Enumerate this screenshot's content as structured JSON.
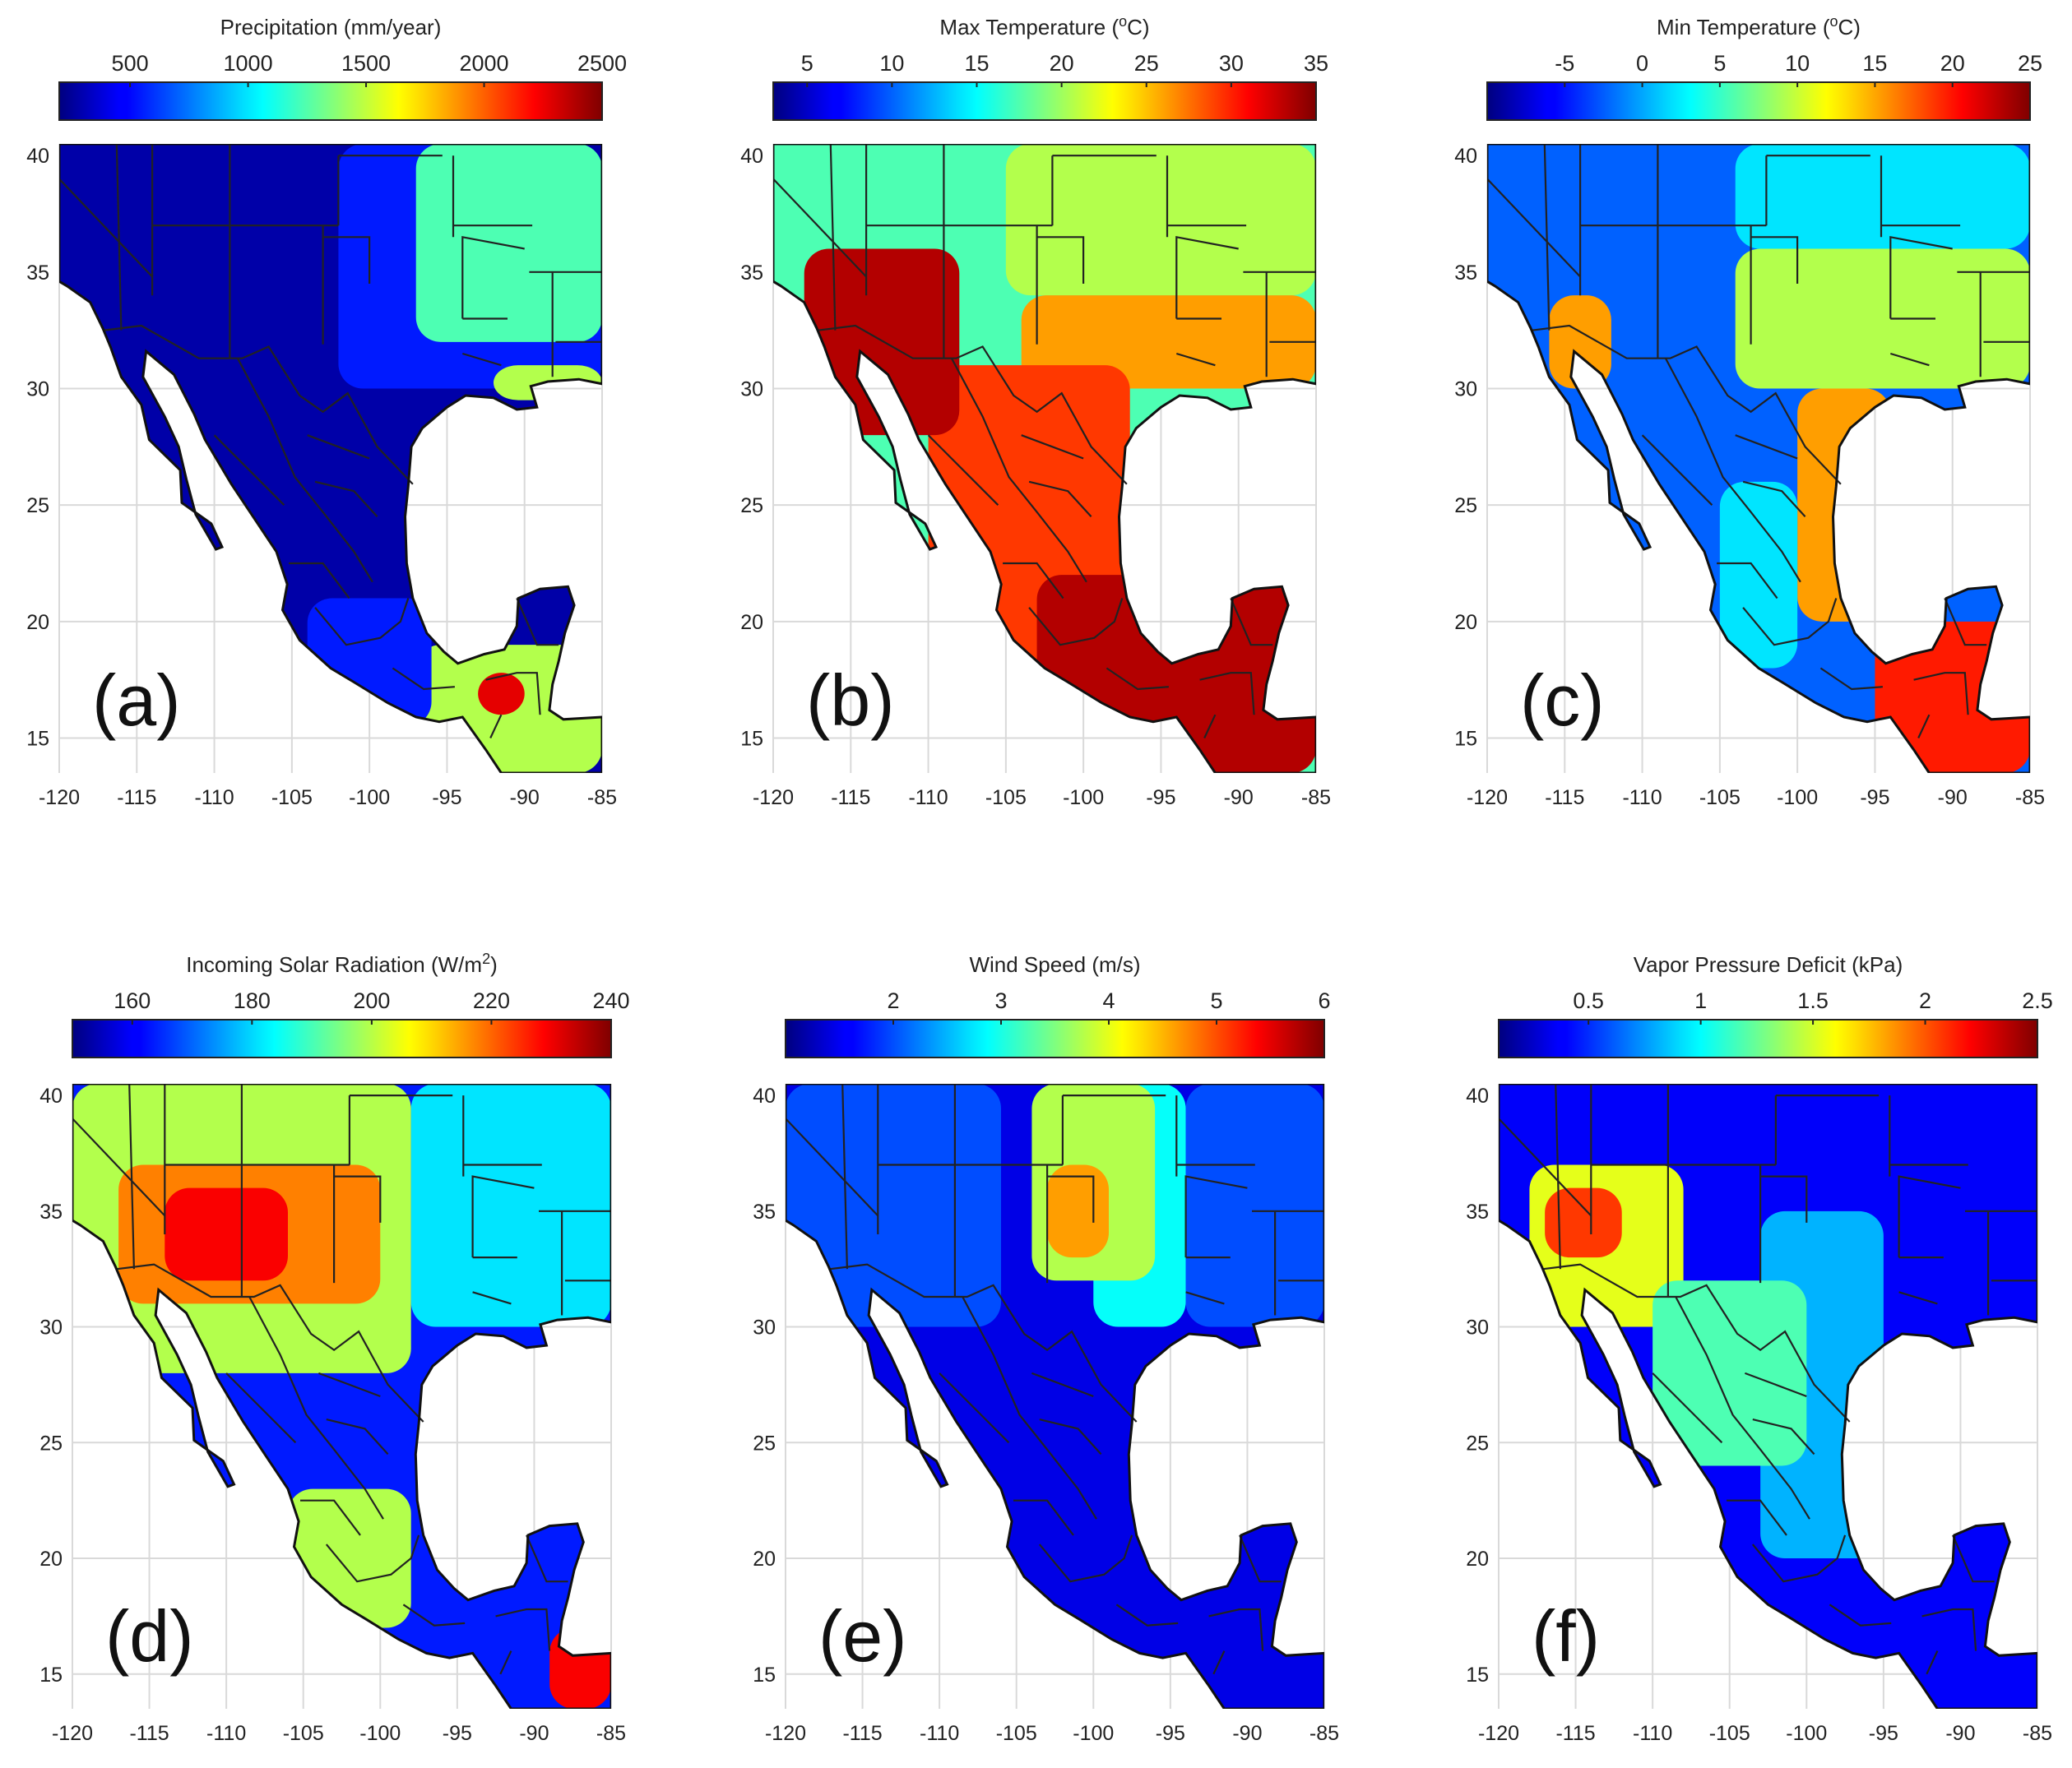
{
  "panels": [
    {
      "id": "a",
      "label": "(a)",
      "title": "Precipitation (mm/year)",
      "colorbar_ticks": [
        "500",
        "1000",
        "1500",
        "2000",
        "2500"
      ],
      "colorbar_min": 200,
      "colorbar_max": 2500,
      "tick_values": [
        500,
        1000,
        1500,
        2000,
        2500
      ],
      "fill_levels": [
        0.04,
        0.15,
        0.45,
        0.55,
        0.9
      ]
    },
    {
      "id": "b",
      "label": "(b)",
      "title": "Max Temperature (°C)",
      "title_base": "Max Temperature (",
      "title_sup": "o",
      "title_end": "C)",
      "colorbar_ticks": [
        "5",
        "10",
        "15",
        "20",
        "25",
        "30",
        "35"
      ],
      "colorbar_min": 3,
      "colorbar_max": 35,
      "tick_values": [
        5,
        10,
        15,
        20,
        25,
        30,
        35
      ],
      "fill_levels": [
        0.45,
        0.55,
        0.72,
        0.82,
        0.95
      ]
    },
    {
      "id": "c",
      "label": "(c)",
      "title": "Min Temperature (°C)",
      "title_base": "Min Temperature (",
      "title_sup": "o",
      "title_end": "C)",
      "colorbar_ticks": [
        "-5",
        "0",
        "5",
        "10",
        "15",
        "20",
        "25"
      ],
      "colorbar_min": -10,
      "colorbar_max": 25,
      "tick_values": [
        -5,
        0,
        5,
        10,
        15,
        20,
        25
      ],
      "fill_levels": [
        0.22,
        0.35,
        0.55,
        0.72,
        0.85
      ]
    },
    {
      "id": "d",
      "label": "(d)",
      "title": "Incoming Solar Radiation (W/m2)",
      "title_base": "Incoming Solar Radiation (W/m",
      "title_sup": "2",
      "title_end": ")",
      "colorbar_ticks": [
        "160",
        "180",
        "200",
        "220",
        "240"
      ],
      "colorbar_min": 150,
      "colorbar_max": 240,
      "tick_values": [
        160,
        180,
        200,
        220,
        240
      ],
      "fill_levels": [
        0.15,
        0.35,
        0.55,
        0.75,
        0.88
      ]
    },
    {
      "id": "e",
      "label": "(e)",
      "title": "Wind Speed (m/s)",
      "colorbar_ticks": [
        "2",
        "3",
        "4",
        "5",
        "6"
      ],
      "colorbar_min": 1,
      "colorbar_max": 6,
      "tick_values": [
        2,
        3,
        4,
        5,
        6
      ],
      "fill_levels": [
        0.1,
        0.2,
        0.38,
        0.55,
        0.72
      ]
    },
    {
      "id": "f",
      "label": "(f)",
      "title": "Vapor Pressure Deficit (kPa)",
      "colorbar_ticks": [
        "0.5",
        "1",
        "1.5",
        "2",
        "2.5"
      ],
      "colorbar_min": 0.1,
      "colorbar_max": 2.5,
      "tick_values": [
        0.5,
        1,
        1.5,
        2,
        2.5
      ],
      "fill_levels": [
        0.12,
        0.3,
        0.45,
        0.6,
        0.82
      ]
    }
  ],
  "axes": {
    "x_ticks": [
      "-120",
      "-115",
      "-110",
      "-105",
      "-100",
      "-95",
      "-90",
      "-85"
    ],
    "x_values": [
      -120,
      -115,
      -110,
      -105,
      -100,
      -95,
      -90,
      -85
    ],
    "y_ticks": [
      "40",
      "35",
      "30",
      "25",
      "20",
      "15"
    ],
    "y_values": [
      40,
      35,
      30,
      25,
      20,
      15
    ],
    "lon_range": [
      -120,
      -85
    ],
    "lat_range": [
      13.5,
      40.5
    ]
  },
  "colormap": "jet"
}
